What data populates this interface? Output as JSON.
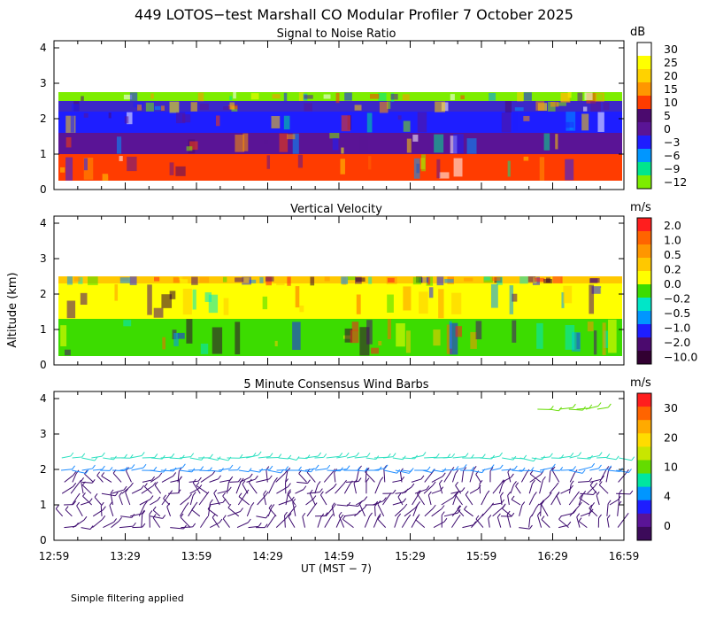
{
  "title": "449 LOTOS−test Marshall CO Modular Profiler  7 October 2025",
  "ylabel": "Altitude (km)",
  "xlabel": "UT  (MST − 7)",
  "note": "Simple filtering applied",
  "x_ticks": [
    "12:59",
    "13:29",
    "13:59",
    "14:29",
    "14:59",
    "15:29",
    "15:59",
    "16:29",
    "16:59"
  ],
  "y_ticks": [
    "0",
    "1",
    "2",
    "3",
    "4"
  ],
  "chart_data": [
    {
      "type": "heatmap",
      "name": "snr",
      "title": "Signal to Noise Ratio",
      "unit": "dB",
      "xlim": [
        "12:59",
        "16:59"
      ],
      "ylim": [
        0,
        4.2
      ],
      "colorbar": {
        "labels": [
          "30",
          "25",
          "20",
          "15",
          "10",
          "5",
          "0",
          "−3",
          "−6",
          "−9",
          "−12"
        ],
        "colors": [
          "#ffffff",
          "#ffff00",
          "#ffd200",
          "#ff9600",
          "#ff3c00",
          "#4b0a6e",
          "#5a1496",
          "#1e1eff",
          "#0096ff",
          "#00e68c",
          "#7ded00"
        ]
      },
      "layers": [
        {
          "from_km": 0.25,
          "to_km": 1.0,
          "snr_db": "10 to 15",
          "color": "#ff3c00"
        },
        {
          "from_km": 1.0,
          "to_km": 1.6,
          "snr_db": "0 to 5",
          "color": "#5a1496"
        },
        {
          "from_km": 1.6,
          "to_km": 2.2,
          "snr_db": "-6 to -3",
          "color": "#1e1eff"
        },
        {
          "from_km": 2.2,
          "to_km": 2.5,
          "snr_db": "-3 to 0",
          "color": "#3c28c8"
        },
        {
          "from_km": 2.5,
          "to_km": 2.75,
          "snr_db": "-12 to -9",
          "color": "#7ded00"
        }
      ]
    },
    {
      "type": "heatmap",
      "name": "vertical_velocity",
      "title": "Vertical Velocity",
      "unit": "m/s",
      "xlim": [
        "12:59",
        "16:59"
      ],
      "ylim": [
        0,
        4.2
      ],
      "colorbar": {
        "labels": [
          "2.0",
          "1.0",
          "0.5",
          "0.2",
          "0.0",
          "−0.2",
          "−0.5",
          "−1.0",
          "−2.0",
          "−10.0"
        ],
        "colors": [
          "#ff1e1e",
          "#ff6400",
          "#ff9600",
          "#ffc800",
          "#ffff00",
          "#3cdc00",
          "#00e6c8",
          "#0096ff",
          "#1e1eff",
          "#4b0a6e",
          "#320032"
        ]
      },
      "layers": [
        {
          "from_km": 0.25,
          "to_km": 1.3,
          "w_ms": "-0.2 to 0.0",
          "color": "#3cdc00"
        },
        {
          "from_km": 1.3,
          "to_km": 2.3,
          "w_ms": "0.0 to 0.2",
          "color": "#ffff00"
        },
        {
          "from_km": 2.3,
          "to_km": 2.5,
          "w_ms": "0.2 to 0.5",
          "color": "#ffc800"
        }
      ]
    },
    {
      "type": "wind_barbs",
      "name": "wind",
      "title": "5 Minute Consensus Wind Barbs",
      "unit": "m/s",
      "xlim": [
        "12:59",
        "16:59"
      ],
      "ylim": [
        0,
        4.2
      ],
      "colorbar": {
        "labels": [
          "30",
          "20",
          "10",
          "4",
          "0"
        ],
        "colors": [
          "#ff1e1e",
          "#ff6400",
          "#ffaa00",
          "#ffdc00",
          "#c8e600",
          "#64dc00",
          "#00e6a0",
          "#0096ff",
          "#1e1eff",
          "#5a1496",
          "#3c0a5a"
        ]
      },
      "layers": [
        {
          "from_km": 0.2,
          "to_km": 1.8,
          "speed_ms": "0 to 4",
          "color": "#3c0a6e"
        },
        {
          "from_km": 1.8,
          "to_km": 2.15,
          "speed_ms": "4 to 8",
          "color": "#1e8cff"
        },
        {
          "from_km": 2.15,
          "to_km": 2.5,
          "speed_ms": "8 to 12",
          "color": "#2ee0c0"
        },
        {
          "from_km": 3.6,
          "to_km": 3.8,
          "speed_ms": "10 to 14",
          "color": "#64dc00"
        }
      ]
    }
  ]
}
